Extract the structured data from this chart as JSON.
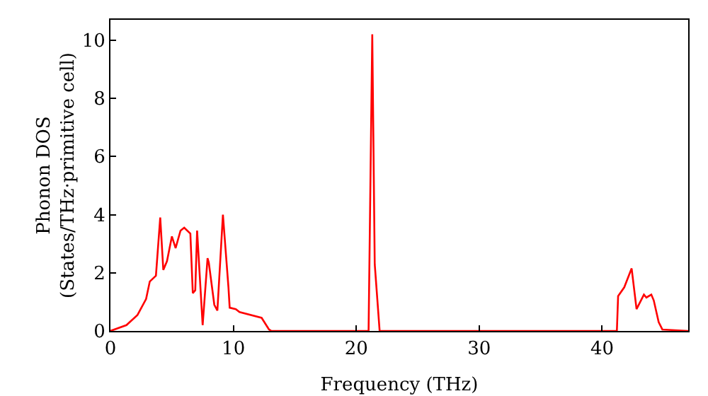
{
  "chart_data": {
    "type": "line",
    "xlabel": "Frequency (THz)",
    "ylabel": "Phonon DOS\n(States/THz·primitive cell)",
    "xlim": [
      0,
      47
    ],
    "ylim": [
      0,
      10.7
    ],
    "xticks": [
      0,
      10,
      20,
      30,
      40
    ],
    "yticks": [
      0,
      2,
      4,
      6,
      8,
      10
    ],
    "grid": false,
    "marker": "none",
    "line_style": "solid",
    "series": [
      {
        "color": "#ff0000",
        "x": [
          0,
          1.3,
          2.2,
          2.9,
          3.2,
          3.7,
          4.05,
          4.3,
          4.6,
          5.0,
          5.3,
          5.7,
          6.0,
          6.5,
          6.7,
          6.9,
          7.05,
          7.5,
          7.9,
          8.0,
          8.45,
          8.7,
          9.15,
          9.6,
          9.7,
          10.2,
          10.5,
          12.3,
          12.9,
          13.1,
          21.0,
          21.3,
          21.5,
          21.9,
          41.2,
          41.3,
          41.8,
          42.4,
          42.8,
          43.4,
          43.6,
          44.0,
          44.2,
          44.6,
          44.9,
          47
        ],
        "values": [
          0,
          0.2,
          0.55,
          1.1,
          1.7,
          1.9,
          3.9,
          2.1,
          2.4,
          3.25,
          2.85,
          3.45,
          3.55,
          3.35,
          1.3,
          1.4,
          3.45,
          0.2,
          2.5,
          2.35,
          0.9,
          0.7,
          4.0,
          1.5,
          0.8,
          0.75,
          0.65,
          0.45,
          0.05,
          0,
          0,
          10.2,
          2.3,
          0,
          0,
          1.2,
          1.5,
          2.15,
          0.75,
          1.25,
          1.15,
          1.25,
          1.05,
          0.3,
          0.05,
          0
        ]
      }
    ]
  }
}
